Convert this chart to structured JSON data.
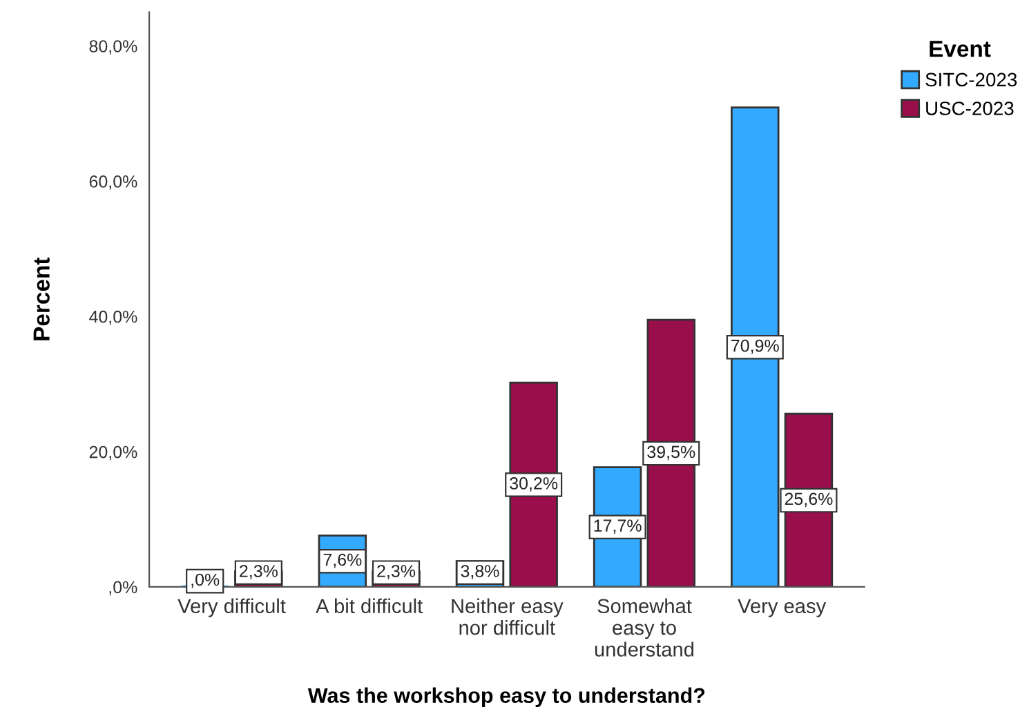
{
  "chart_data": {
    "type": "bar",
    "xlabel": "Was the workshop easy to understand?",
    "ylabel": "Percent",
    "legend_title": "Event",
    "legend": "top right",
    "categories": [
      "Very difficult",
      "A bit difficult",
      "Neither easy\nnor difficult",
      "Somewhat\neasy to\nunderstand",
      "Very easy"
    ],
    "series": [
      {
        "name": "SITC-2023",
        "color": "#33aaff",
        "values": [
          0,
          7.6,
          3.8,
          17.7,
          70.9
        ],
        "value_labels": [
          ",0%",
          "7,6%",
          "3,8%",
          "17,7%",
          "70,9%"
        ]
      },
      {
        "name": "USC-2023",
        "color": "#990f4b",
        "values": [
          2.3,
          2.3,
          30.2,
          39.5,
          25.6
        ],
        "value_labels": [
          "2,3%",
          "2,3%",
          "30,2%",
          "39,5%",
          "25,6%"
        ]
      }
    ],
    "ylim": [
      0,
      85
    ],
    "yticks": [
      {
        "value": 0,
        "label": ",0%"
      },
      {
        "value": 20,
        "label": "20,0%"
      },
      {
        "value": 40,
        "label": "40,0%"
      },
      {
        "value": 60,
        "label": "60,0%"
      },
      {
        "value": 80,
        "label": "80,0%"
      }
    ],
    "grid": false
  }
}
